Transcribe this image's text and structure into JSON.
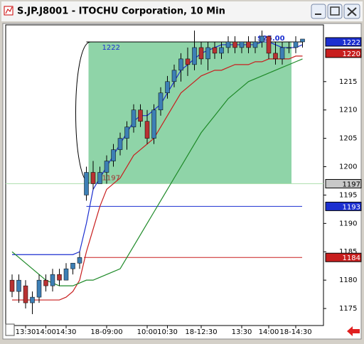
{
  "chart_data": {
    "type": "candlestick",
    "title": "S.JP.J8001 - ITOCHU Corporation, 10 Min",
    "categories": [
      null,
      null,
      "13:30",
      null,
      null,
      "14:00",
      null,
      null,
      "14:30",
      null,
      null,
      null,
      null,
      null,
      "18-09:00",
      null,
      null,
      null,
      null,
      null,
      "10:00",
      null,
      null,
      "10:30",
      null,
      null,
      null,
      null,
      "18-12:30",
      null,
      null,
      null,
      null,
      null,
      "13:30",
      null,
      null,
      null,
      "14:00",
      null,
      null,
      null,
      "18-14:30",
      null
    ],
    "ohlc": {
      "open": [
        1180,
        1178,
        1179,
        1176,
        1177,
        1180,
        1179,
        1181,
        1180,
        1182,
        1183,
        1195,
        1199,
        1197,
        1199,
        1201,
        1203,
        1205,
        1207,
        1210,
        1208,
        1205,
        1210,
        1213,
        1215,
        1217,
        1219,
        1218,
        1221,
        1219,
        1221,
        1220,
        1221,
        1222,
        1221,
        1222,
        1221,
        1222,
        1223,
        1220,
        1219,
        1221,
        1221,
        1222
      ],
      "high": [
        1181,
        1181,
        1180,
        1178,
        1181,
        1181,
        1182,
        1182,
        1183,
        1183,
        1185,
        1200,
        1201,
        1200,
        1202,
        1204,
        1206,
        1208,
        1211,
        1211,
        1210,
        1211,
        1214,
        1216,
        1218,
        1220,
        1221,
        1224,
        1222,
        1222,
        1222,
        1222,
        1223,
        1223,
        1222,
        1223,
        1223,
        1224,
        1223,
        1222,
        1222,
        1222,
        1223,
        1222
      ],
      "low": [
        1177,
        1176,
        1175,
        1174,
        1176,
        1178,
        1178,
        1179,
        1180,
        1181,
        1182,
        1194,
        1196,
        1197,
        1197,
        1200,
        1202,
        1203,
        1206,
        1207,
        1204,
        1204,
        1209,
        1212,
        1214,
        1215,
        1216,
        1217,
        1218,
        1217,
        1219,
        1219,
        1220,
        1220,
        1220,
        1220,
        1220,
        1221,
        1219,
        1218,
        1218,
        1220,
        1220,
        1221
      ],
      "close": [
        1178,
        1180,
        1176,
        1177,
        1180,
        1179,
        1181,
        1180,
        1182,
        1183,
        1184,
        1199,
        1197,
        1199,
        1201,
        1203,
        1205,
        1207,
        1210,
        1208,
        1205,
        1210,
        1213,
        1215,
        1217,
        1219,
        1218,
        1221,
        1219,
        1221,
        1220,
        1221,
        1222,
        1221,
        1222,
        1221,
        1222,
        1223,
        1220,
        1219,
        1221,
        1221,
        1222,
        1222.5
      ]
    },
    "up_color": "#3d7fb5",
    "down_color": "#b83232",
    "series": [
      {
        "color": "#1c2fd0",
        "values": [
          1184.5,
          1184.5,
          1184.5,
          1184.5,
          1184.5,
          1184.5,
          1184.5,
          1184.5,
          1184.5,
          1184.5,
          1185,
          1190,
          1196,
          1198,
          1200,
          1202,
          1204,
          1206,
          1208,
          1209,
          1209,
          1210,
          1211,
          1213,
          1215,
          1217,
          1218,
          1219,
          1220,
          1220.5,
          1221,
          1221.5,
          1221.5,
          1221.5,
          1221.5,
          1221.5,
          1221.5,
          1222,
          1222,
          1221.5,
          1221,
          1221,
          1221,
          1221.5
        ]
      },
      {
        "color": "#c81e1e",
        "values": [
          1176.5,
          1176.5,
          1176.5,
          1176.5,
          1176.5,
          1176.5,
          1176.5,
          1176.5,
          1177,
          1178,
          1180,
          1185,
          1189,
          1193,
          1196,
          1197,
          1198,
          1200,
          1202,
          1203,
          1204,
          1205,
          1207,
          1209,
          1211,
          1213,
          1214,
          1215,
          1216,
          1216.5,
          1217,
          1217,
          1217.5,
          1218,
          1218,
          1218,
          1218.5,
          1218.5,
          1219,
          1219,
          1219,
          1219,
          1219.5,
          1219.5
        ]
      },
      {
        "color": "#1e8a28",
        "values": [
          1185,
          1184,
          1183,
          1182,
          1181,
          1180,
          1179.5,
          1179,
          1179,
          1179,
          1179.5,
          1180,
          1180,
          1180.5,
          1181,
          1181.5,
          1182,
          1184,
          1186,
          1188,
          1190,
          1192,
          1194,
          1196,
          1198,
          1200,
          1202,
          1204,
          1206,
          1207.5,
          1209,
          1210.5,
          1212,
          1213,
          1214,
          1215,
          1215.5,
          1216,
          1216.5,
          1217,
          1217.5,
          1218,
          1218.5,
          1219
        ]
      }
    ],
    "box": {
      "top": 1222,
      "bottom": 1197,
      "color": "#8fd4a8",
      "profit": "$25.00"
    },
    "levels": [
      {
        "value": 1222,
        "color": "#1c2fd0"
      },
      {
        "value": 1220,
        "color": "#c81e1e"
      },
      {
        "value": 1197,
        "color": "#c8c8c8"
      },
      {
        "value": 1193,
        "color": "#1c2fd0"
      },
      {
        "value": 1184,
        "color": "#c81e1e"
      }
    ],
    "ylim": [
      1172,
      1225
    ],
    "yticks": [
      1175,
      1180,
      1185,
      1190,
      1195,
      1200,
      1205,
      1210,
      1215
    ]
  }
}
